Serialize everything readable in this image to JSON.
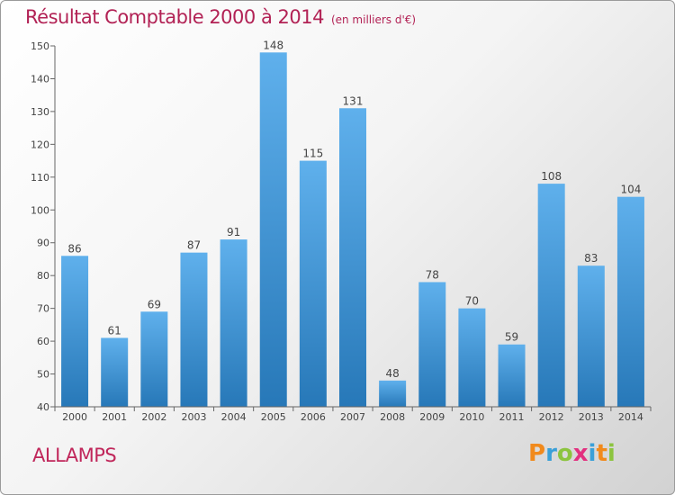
{
  "header": {
    "title": "Résultat Comptable 2000 à 2014",
    "unit": "(en milliers d'€)"
  },
  "commune": "ALLAMPS",
  "logo": {
    "text": "Proxiti",
    "letters": [
      "P",
      "r",
      "o",
      "x",
      "i",
      "t",
      "i"
    ],
    "colors": [
      "#f18a1c",
      "#3aa0d8",
      "#8cc43f",
      "#e2307f",
      "#3aa0d8",
      "#f18a1c",
      "#8cc43f"
    ]
  },
  "colors": {
    "title": "#b22255",
    "bar_light": "#5fb0ec",
    "bar_dark": "#2778b8"
  },
  "chart_data": {
    "type": "bar",
    "title": "Résultat Comptable 2000 à 2014",
    "subtitle": "(en milliers d'€)",
    "categories": [
      "2000",
      "2001",
      "2002",
      "2003",
      "2004",
      "2005",
      "2006",
      "2007",
      "2008",
      "2009",
      "2010",
      "2011",
      "2012",
      "2013",
      "2014"
    ],
    "values": [
      86,
      61,
      69,
      87,
      91,
      148,
      115,
      131,
      48,
      78,
      70,
      59,
      108,
      83,
      104
    ],
    "ylim": [
      40,
      150
    ],
    "yticks": [
      40,
      50,
      60,
      70,
      80,
      90,
      100,
      110,
      120,
      130,
      140,
      150
    ],
    "grid": false,
    "data_labels": true
  }
}
